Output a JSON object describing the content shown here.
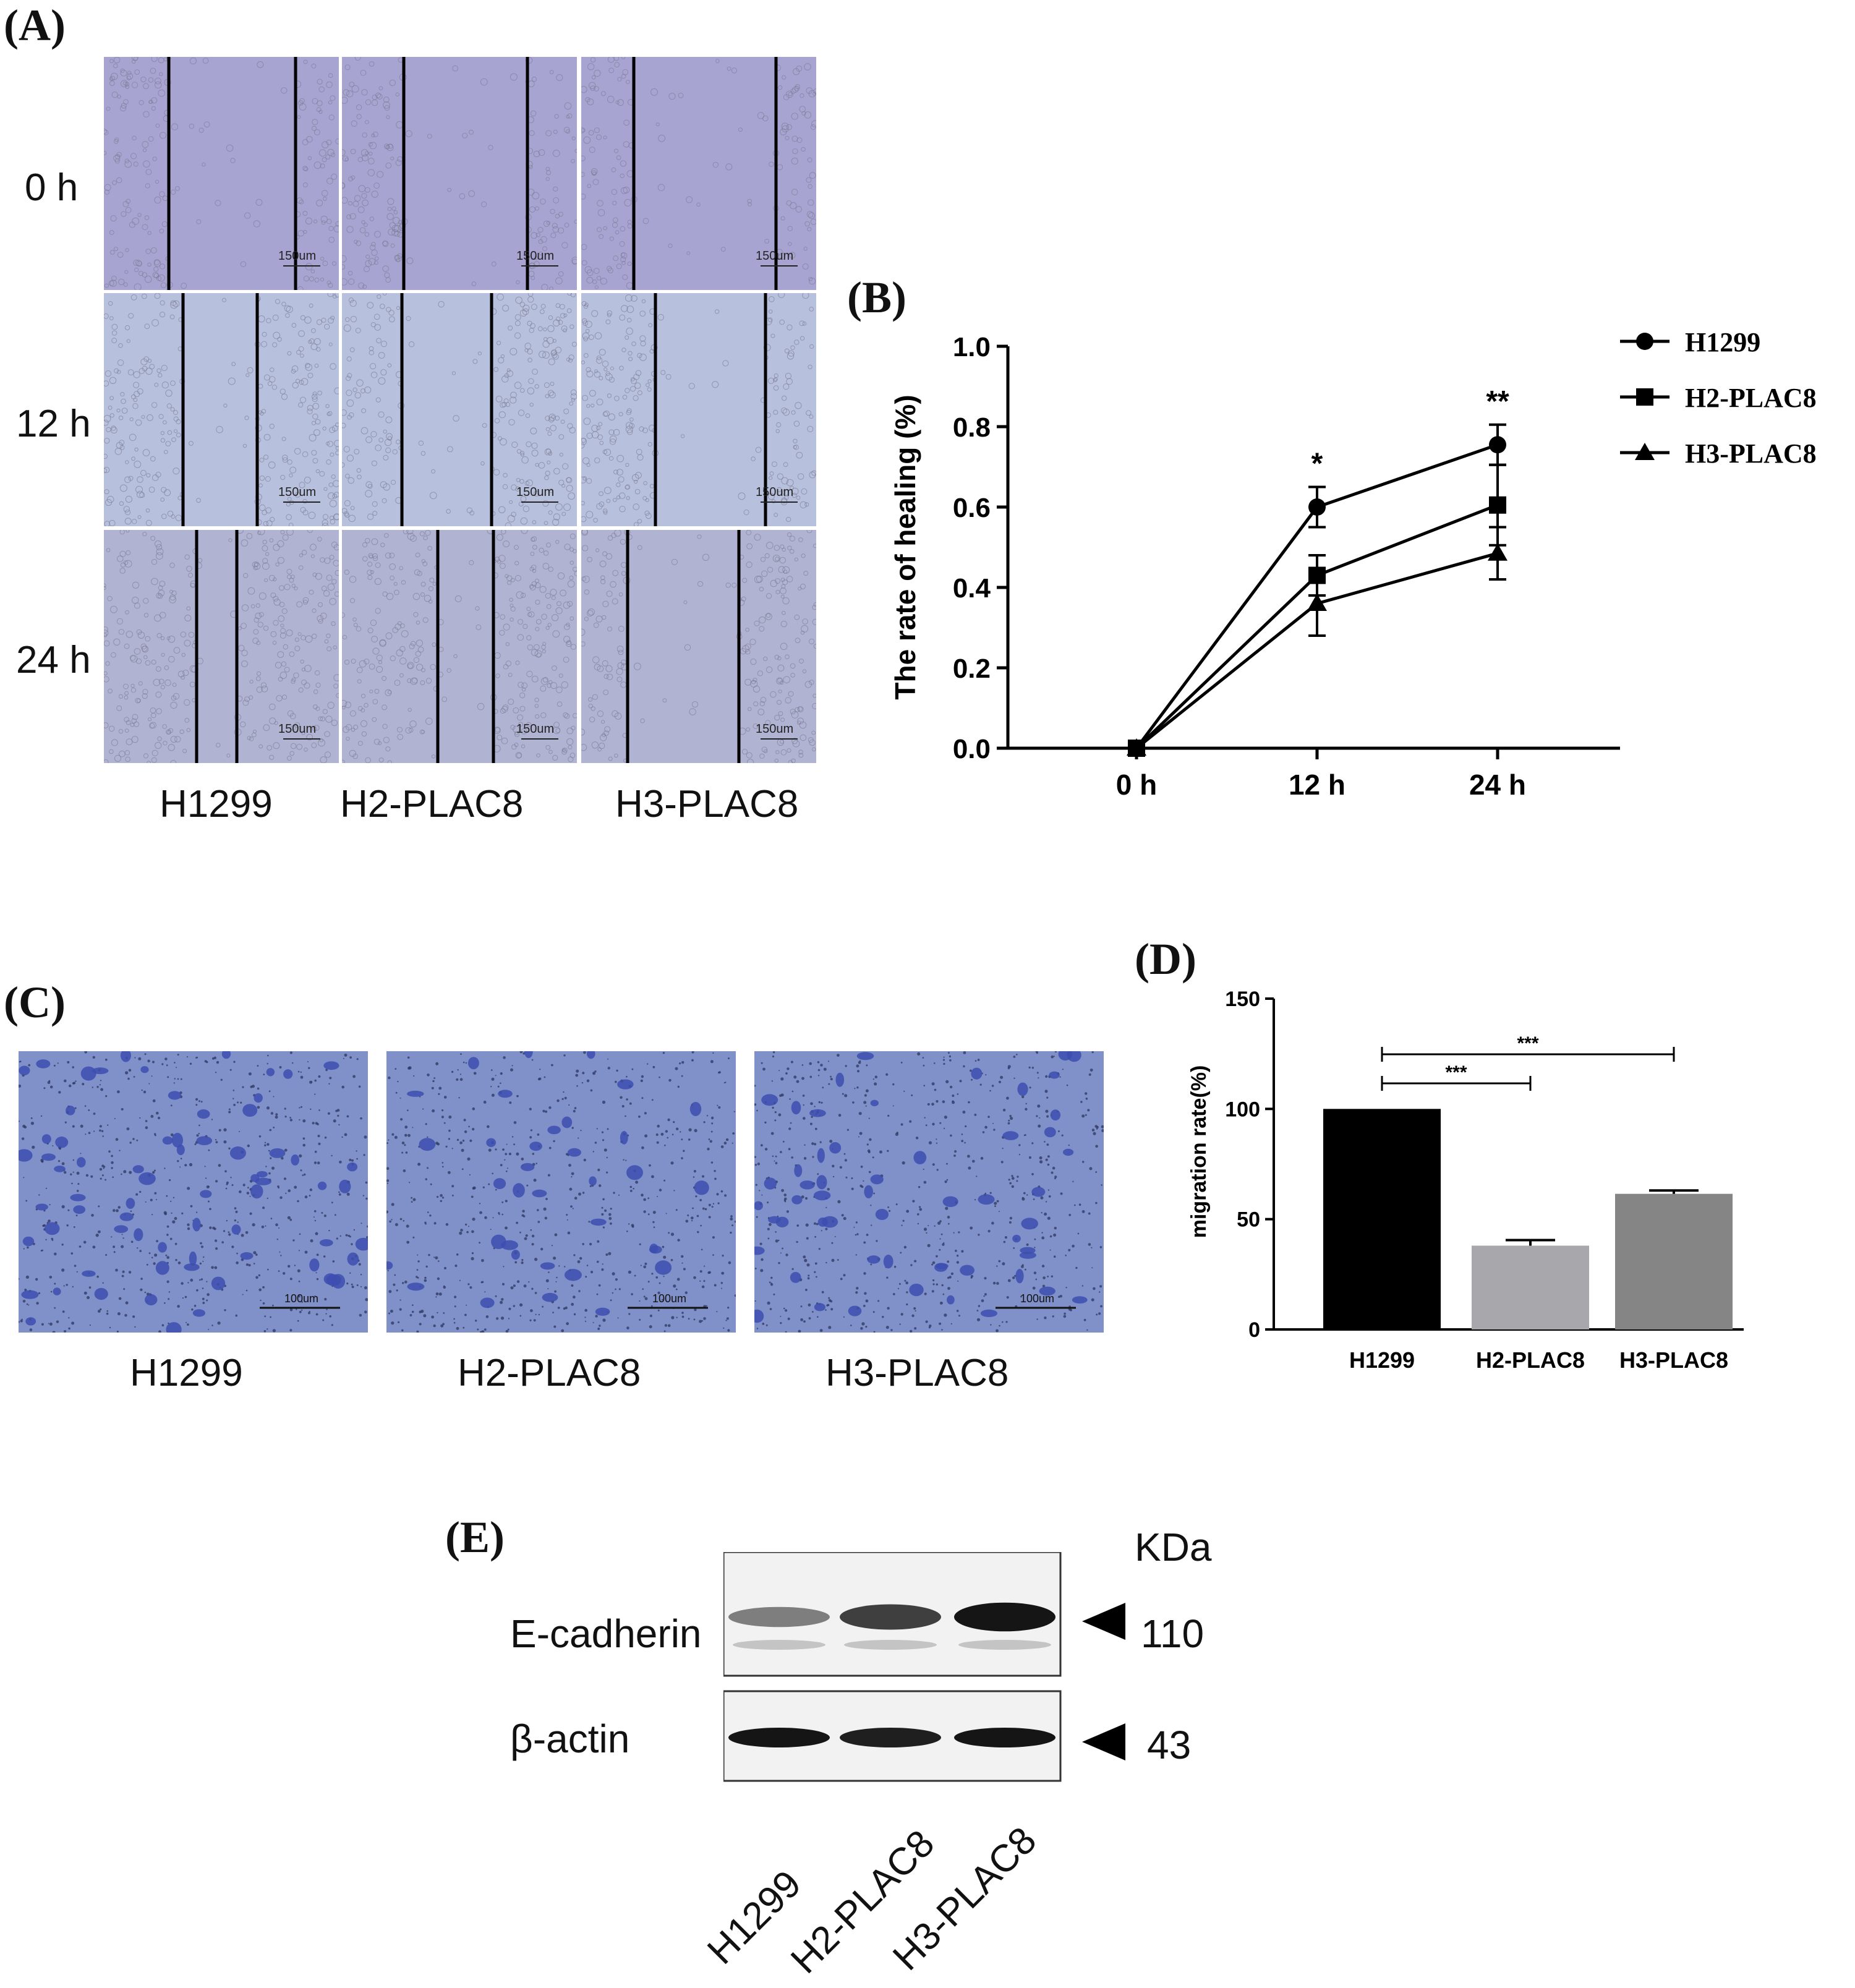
{
  "panels": {
    "A": {
      "label": "(A)",
      "rows": [
        "0 h",
        "12 h",
        "24 h"
      ],
      "cols": [
        "H1299",
        "H2-PLAC8",
        "H3-PLAC8"
      ],
      "scale_bar": "150um",
      "tile_color": "#a9a8d0"
    },
    "B": {
      "label": "(B)"
    },
    "C": {
      "label": "(C)",
      "cols": [
        "H1299",
        "H2-PLAC8",
        "H3-PLAC8"
      ],
      "scale_bar": "100um",
      "tile_color": "#6f7cbf"
    },
    "D": {
      "label": "(D)"
    },
    "E": {
      "label": "(E)",
      "unit_header": "KDa",
      "bands": [
        {
          "name": "E-cadherin",
          "kda": "110",
          "intensity": [
            0.45,
            0.75,
            0.95
          ]
        },
        {
          "name": "β-actin",
          "kda": "43",
          "intensity": [
            0.95,
            0.9,
            0.95
          ]
        }
      ],
      "lanes": [
        "H1299",
        "H2-PLAC8",
        "H3-PLAC8"
      ]
    }
  },
  "chart_data": [
    {
      "type": "line",
      "panel": "B",
      "ylabel": "The rate of healing (%)",
      "xlabel": "",
      "x": [
        "0 h",
        "12 h",
        "24 h"
      ],
      "ylim": [
        0,
        1.0
      ],
      "yticks": [
        "0.0",
        "0.2",
        "0.4",
        "0.6",
        "0.8",
        "1.0"
      ],
      "legend_position": "top-right",
      "series": [
        {
          "name": "H1299",
          "marker": "circle",
          "values": [
            0,
            0.6,
            0.755
          ],
          "errors": [
            0,
            0.05,
            0.05
          ]
        },
        {
          "name": "H2-PLAC8",
          "marker": "square",
          "values": [
            0,
            0.43,
            0.605
          ],
          "errors": [
            0,
            0.05,
            0.1
          ]
        },
        {
          "name": "H3-PLAC8",
          "marker": "triangle",
          "values": [
            0,
            0.36,
            0.485
          ],
          "errors": [
            0,
            0.08,
            0.065
          ]
        }
      ],
      "annotations": [
        {
          "x": "12 h",
          "text": "*"
        },
        {
          "x": "24 h",
          "text": "**"
        }
      ]
    },
    {
      "type": "bar",
      "panel": "D",
      "ylabel": "migration rate(%)",
      "xlabel": "",
      "categories": [
        "H1299",
        "H2-PLAC8",
        "H3-PLAC8"
      ],
      "values": [
        100,
        38,
        61.5
      ],
      "errors": [
        0,
        2.5,
        1.5
      ],
      "colors": [
        "#000000",
        "#a8a8ac",
        "#858585"
      ],
      "ylim": [
        0,
        150
      ],
      "yticks": [
        "0",
        "50",
        "100",
        "150"
      ],
      "significance": [
        {
          "from": "H1299",
          "to": "H2-PLAC8",
          "text": "***"
        },
        {
          "from": "H1299",
          "to": "H3-PLAC8",
          "text": "***"
        }
      ]
    }
  ]
}
